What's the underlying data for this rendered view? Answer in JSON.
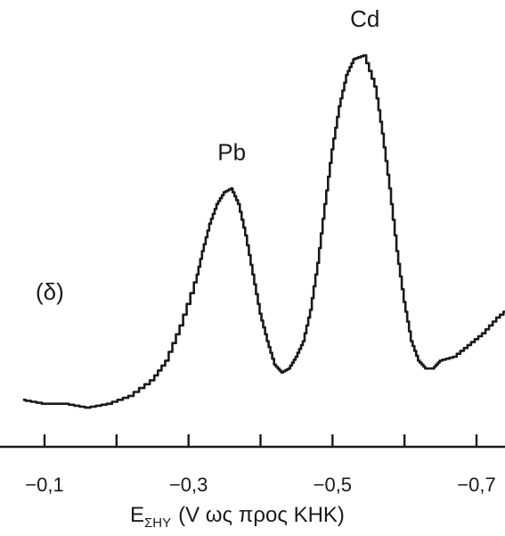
{
  "chart_data": {
    "type": "line",
    "panel_label": "(δ)",
    "xlabel_main": "E",
    "xlabel_sub": "ΣΗΥ",
    "xlabel_rest": "(V ως προς ΚΗΚ)",
    "x_reversed": true,
    "xlim": [
      -0.05,
      -0.75
    ],
    "ylim": [
      0,
      1
    ],
    "major_ticks": [
      -0.1,
      -0.2,
      -0.3,
      -0.4,
      -0.5,
      -0.6,
      -0.7
    ],
    "tick_labels": [
      {
        "value": -0.1,
        "label": "−0,1"
      },
      {
        "value": -0.3,
        "label": "−0,3"
      },
      {
        "value": -0.5,
        "label": "−0,5"
      },
      {
        "value": -0.7,
        "label": "−0,7"
      }
    ],
    "peaks": [
      {
        "label": "Pb",
        "x": -0.36,
        "y": 0.66
      },
      {
        "label": "Cd",
        "x": -0.545,
        "y": 1.0
      }
    ],
    "series": [
      {
        "x": [
          -0.07,
          -0.1,
          -0.13,
          -0.16,
          -0.19,
          -0.22,
          -0.25,
          -0.27,
          -0.29,
          -0.31,
          -0.32,
          -0.33,
          -0.34,
          -0.35,
          -0.36,
          -0.37,
          -0.38,
          -0.39,
          -0.4,
          -0.41,
          -0.42,
          -0.43,
          -0.44,
          -0.45,
          -0.46,
          -0.47,
          -0.48,
          -0.49,
          -0.5,
          -0.51,
          -0.52,
          -0.53,
          -0.545,
          -0.56,
          -0.57,
          -0.58,
          -0.59,
          -0.6,
          -0.61,
          -0.62,
          -0.63,
          -0.64,
          -0.65,
          -0.67,
          -0.69,
          -0.71,
          -0.73,
          -0.75
        ],
        "y": [
          0.12,
          0.11,
          0.11,
          0.1,
          0.11,
          0.13,
          0.17,
          0.22,
          0.31,
          0.42,
          0.5,
          0.57,
          0.62,
          0.65,
          0.66,
          0.62,
          0.54,
          0.44,
          0.34,
          0.27,
          0.21,
          0.19,
          0.2,
          0.23,
          0.27,
          0.35,
          0.47,
          0.62,
          0.76,
          0.87,
          0.95,
          0.99,
          1.0,
          0.92,
          0.8,
          0.66,
          0.5,
          0.37,
          0.27,
          0.22,
          0.2,
          0.2,
          0.22,
          0.23,
          0.26,
          0.29,
          0.33,
          0.36
        ]
      }
    ]
  }
}
